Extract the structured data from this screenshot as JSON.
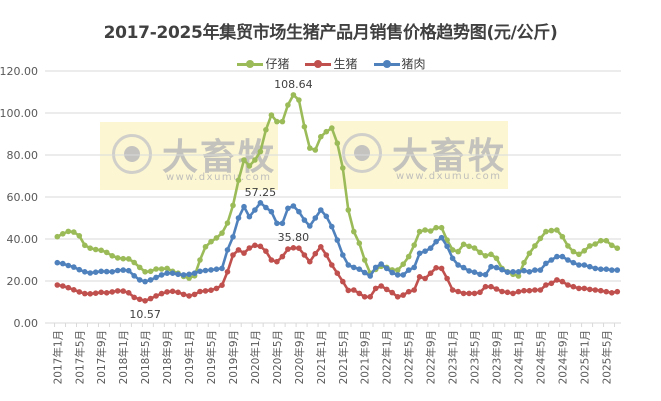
{
  "chart_data": {
    "type": "line",
    "title": "2017-2025年集贸市场生猪产品月销售价格趋势图(元/公斤)",
    "xlabel": "",
    "ylabel": "",
    "ylim": [
      0,
      120
    ],
    "yticks": [
      "0.00",
      "20.00",
      "40.00",
      "60.00",
      "80.00",
      "100.00",
      "120.00"
    ],
    "grid": true,
    "legend_position": "top",
    "x_start": "2017-01",
    "x_end": "2025-07",
    "xtick_labels": [
      "2017年1月",
      "2017年5月",
      "2017年9月",
      "2018年1月",
      "2018年5月",
      "2018年9月",
      "2019年1月",
      "2019年5月",
      "2019年9月",
      "2020年1月",
      "2020年5月",
      "2020年9月",
      "2021年1月",
      "2021年5月",
      "2021年9月",
      "2022年1月",
      "2022年5月",
      "2022年9月",
      "2023年1月",
      "2023年5月",
      "2023年9月",
      "2024年1月",
      "2024年5月",
      "2024年9月",
      "2025年1月",
      "2025年5月"
    ],
    "series": [
      {
        "name": "仔猪",
        "color": "#9BBB59",
        "values": [
          41.1,
          42.5,
          43.6,
          43.3,
          41.5,
          37,
          35.6,
          35,
          34.6,
          33.6,
          32,
          31,
          30.6,
          30.5,
          28.8,
          26.5,
          24.4,
          24.6,
          25.7,
          25.7,
          26,
          24.6,
          23.7,
          22.2,
          21.4,
          22.5,
          30,
          36.3,
          38.7,
          40.5,
          42.8,
          47.6,
          56,
          68,
          77.6,
          74.8,
          77.6,
          81.6,
          92,
          99,
          95.9,
          95.9,
          103.8,
          108.64,
          106.2,
          93.5,
          83.3,
          82.4,
          88.7,
          91.1,
          92.8,
          85.6,
          73.8,
          53.8,
          43.5,
          38,
          30,
          23.7,
          25.5,
          27,
          26.5,
          25.3,
          25.2,
          28,
          31.6,
          37.1,
          43.5,
          44.3,
          43.8,
          45.4,
          45.4,
          39.5,
          34.8,
          34,
          37.5,
          36.5,
          35.7,
          33.6,
          32,
          32.7,
          30.8,
          26,
          24.4,
          23.2,
          22.4,
          28.7,
          33.2,
          36.7,
          40.3,
          43.5,
          44,
          44.3,
          41.1,
          36.7,
          34,
          32.7,
          34.4,
          36.7,
          37.6,
          39.2,
          39.2,
          37,
          35.6
        ]
      },
      {
        "name": "生猪",
        "color": "#C0504D",
        "values": [
          18.1,
          17.6,
          16.8,
          15.8,
          14.8,
          14,
          13.9,
          14.2,
          14.6,
          14.4,
          14.8,
          15.3,
          15.2,
          14.4,
          12.2,
          11.3,
          10.57,
          11.6,
          12.9,
          14,
          14.8,
          15.1,
          14.6,
          13.6,
          12.9,
          13.6,
          15,
          15.3,
          15.6,
          16.5,
          18,
          24.4,
          32.4,
          34.8,
          33.3,
          35.7,
          37,
          36.5,
          34.2,
          30,
          29.2,
          31.6,
          35.2,
          35.8,
          35.6,
          32.4,
          29.2,
          33,
          36.3,
          32.4,
          27.6,
          23.7,
          19.7,
          15.5,
          15.7,
          14.1,
          12.5,
          12.5,
          16.5,
          17.6,
          16,
          14.5,
          12.5,
          13.3,
          14.9,
          15.7,
          22,
          21.2,
          23.7,
          26.3,
          26,
          21.2,
          15.7,
          15,
          14.1,
          14.1,
          14.1,
          14.6,
          17.3,
          17.3,
          16.2,
          15,
          14.6,
          14.1,
          14.9,
          15.4,
          15.4,
          15.7,
          15.7,
          18.1,
          18.9,
          20.5,
          19.7,
          18.1,
          17.3,
          16.5,
          16.5,
          16,
          15.7,
          15.4,
          14.9,
          14.4,
          14.9
        ]
      },
      {
        "name": "猪肉",
        "color": "#4F81BD",
        "values": [
          28.7,
          28.3,
          27.4,
          26.6,
          25.4,
          24.4,
          23.8,
          24.2,
          24.6,
          24.5,
          24.4,
          25,
          25.2,
          24.9,
          22.5,
          20.5,
          19.7,
          20.5,
          21.7,
          22.9,
          23.7,
          23.7,
          23.2,
          22.9,
          23.2,
          23.7,
          24.6,
          25,
          25.3,
          25.6,
          26,
          34.8,
          41,
          50,
          55.4,
          50.6,
          53.8,
          57.25,
          55,
          53,
          47.5,
          47.5,
          54.6,
          55.7,
          53,
          49,
          46.2,
          50,
          53.8,
          50.8,
          45.9,
          39.5,
          32.4,
          27.6,
          26.5,
          25.6,
          24,
          22.4,
          26.5,
          28.1,
          26,
          24,
          22.9,
          22.9,
          25.2,
          26.5,
          33.2,
          34.2,
          35.6,
          38.7,
          40.6,
          36.5,
          30.8,
          27.6,
          26.4,
          24.8,
          24.2,
          23.2,
          23,
          26.8,
          26.4,
          25.4,
          24.2,
          24.4,
          24.4,
          24.9,
          24.4,
          25.2,
          25.2,
          28.4,
          30,
          31.6,
          31.6,
          30,
          28.7,
          27.6,
          27.6,
          26.8,
          26,
          25.6,
          25.6,
          25.2,
          25.2
        ]
      }
    ],
    "annotations": [
      {
        "series": "仔猪",
        "index": 43,
        "text": "108.64"
      },
      {
        "series": "猪肉",
        "index": 37,
        "text": "57.25"
      },
      {
        "series": "生猪",
        "index": 43,
        "text": "35.80"
      },
      {
        "series": "生猪",
        "index": 16,
        "text": "10.57"
      }
    ]
  },
  "watermark": {
    "brand": "大畜牧",
    "url": "www.dxumu.com"
  }
}
